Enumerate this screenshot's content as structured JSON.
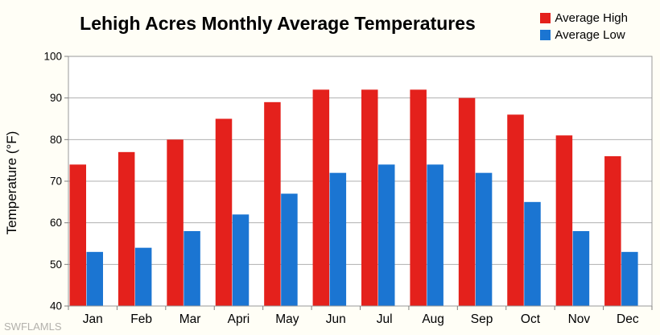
{
  "title": "Lehigh Acres Monthly Average Temperatures",
  "watermark": "SWFLAMLS",
  "legend": {
    "items": [
      {
        "label": "Average High",
        "color": "#e4211c"
      },
      {
        "label": "Average Low",
        "color": "#1b75d2"
      }
    ],
    "position": "top-right"
  },
  "chart_data": {
    "type": "bar",
    "title": "Lehigh Acres Monthly Average Temperatures",
    "categories": [
      "Jan",
      "Feb",
      "Mar",
      "Apri",
      "May",
      "Jun",
      "Jul",
      "Aug",
      "Sep",
      "Oct",
      "Nov",
      "Dec"
    ],
    "series": [
      {
        "name": "Average High",
        "color": "#e4211c",
        "values": [
          74,
          77,
          80,
          85,
          89,
          92,
          92,
          92,
          90,
          86,
          81,
          76
        ]
      },
      {
        "name": "Average Low",
        "color": "#1b75d2",
        "values": [
          53,
          54,
          58,
          62,
          67,
          72,
          74,
          74,
          72,
          65,
          58,
          53
        ]
      }
    ],
    "xlabel": "",
    "ylabel": "Temperature (°F)",
    "ylim": [
      40,
      100
    ],
    "ytick_step": 10,
    "ytick_labels": [
      "40",
      "50",
      "60",
      "70",
      "80",
      "90",
      "100"
    ],
    "grid": true,
    "legend_position": "top-right"
  },
  "colors": {
    "background": "#fffef6",
    "plot_background": "#ffffff",
    "grid": "#b0b0b0",
    "axis": "#999999",
    "tick": "#808080",
    "text": "#000000",
    "watermark": "#b3b1ac"
  }
}
